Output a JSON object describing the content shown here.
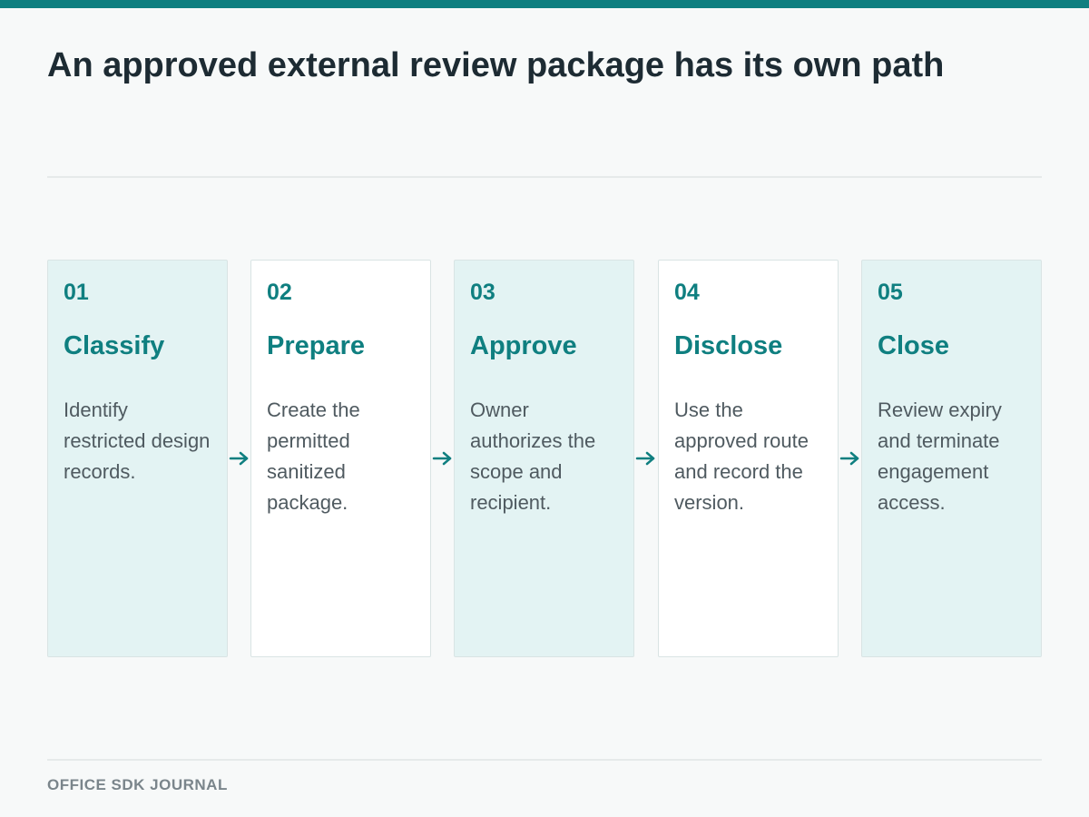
{
  "title": "An approved external review package has its own path",
  "steps": [
    {
      "number": "01",
      "name": "Classify",
      "description": "Identify restricted design records."
    },
    {
      "number": "02",
      "name": "Prepare",
      "description": "Create the permitted sanitized package."
    },
    {
      "number": "03",
      "name": "Approve",
      "description": "Owner authorizes the scope and recipient."
    },
    {
      "number": "04",
      "name": "Disclose",
      "description": "Use the approved route and record the version."
    },
    {
      "number": "05",
      "name": "Close",
      "description": "Review expiry and terminate engagement access."
    }
  ],
  "footer": "OFFICE SDK JOURNAL",
  "colors": {
    "accent": "#0f7f80",
    "tinted_card": "#e3f3f3",
    "plain_card": "#ffffff"
  }
}
